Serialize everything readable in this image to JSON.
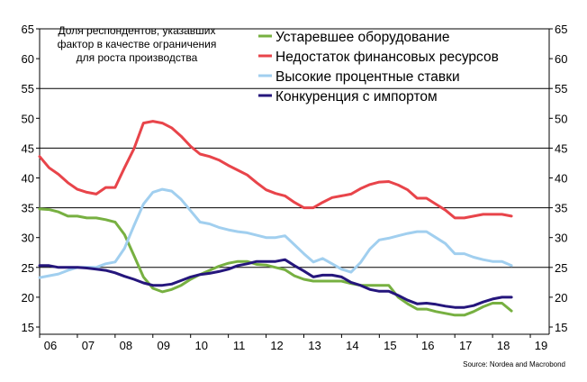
{
  "chart_data": {
    "type": "line",
    "annotation": [
      "Доля респондентов, указавших",
      "фактор в качестве ограничения",
      "для роста производства"
    ],
    "source": "Source: Nordea and Macrobond",
    "x_tick_labels": [
      "06",
      "07",
      "08",
      "09",
      "10",
      "11",
      "12",
      "13",
      "14",
      "15",
      "16",
      "17",
      "18",
      "19"
    ],
    "xlim": [
      2006,
      2019.5
    ],
    "ylim": [
      15,
      65
    ],
    "yticks": [
      15,
      20,
      25,
      30,
      35,
      40,
      45,
      50,
      55,
      60,
      65
    ],
    "grid": "horizontal lines at 25, 35, 45, 55, 65",
    "legend_position": "top-center",
    "series": [
      {
        "name": "Устаревшее оборудование",
        "color": "#77b041",
        "points": [
          [
            2006.0,
            34.8
          ],
          [
            2006.25,
            34.7
          ],
          [
            2006.5,
            34.3
          ],
          [
            2006.75,
            33.6
          ],
          [
            2007.0,
            33.6
          ],
          [
            2007.25,
            33.3
          ],
          [
            2007.5,
            33.3
          ],
          [
            2007.75,
            33.0
          ],
          [
            2008.0,
            32.6
          ],
          [
            2008.25,
            30.5
          ],
          [
            2008.5,
            27.0
          ],
          [
            2008.75,
            23.4
          ],
          [
            2009.0,
            21.5
          ],
          [
            2009.25,
            20.9
          ],
          [
            2009.5,
            21.3
          ],
          [
            2009.75,
            22.0
          ],
          [
            2010.0,
            23.0
          ],
          [
            2010.25,
            23.8
          ],
          [
            2010.5,
            24.5
          ],
          [
            2010.75,
            25.2
          ],
          [
            2011.0,
            25.7
          ],
          [
            2011.25,
            26.0
          ],
          [
            2011.5,
            26.0
          ],
          [
            2011.75,
            25.5
          ],
          [
            2012.0,
            25.4
          ],
          [
            2012.25,
            25.0
          ],
          [
            2012.5,
            24.6
          ],
          [
            2012.75,
            23.6
          ],
          [
            2013.0,
            23.0
          ],
          [
            2013.25,
            22.7
          ],
          [
            2013.5,
            22.7
          ],
          [
            2013.75,
            22.7
          ],
          [
            2014.0,
            22.7
          ],
          [
            2014.25,
            22.3
          ],
          [
            2014.5,
            22.0
          ],
          [
            2014.75,
            22.0
          ],
          [
            2015.0,
            22.0
          ],
          [
            2015.25,
            22.0
          ],
          [
            2015.5,
            20.0
          ],
          [
            2015.75,
            18.9
          ],
          [
            2016.0,
            18.0
          ],
          [
            2016.25,
            18.0
          ],
          [
            2016.5,
            17.6
          ],
          [
            2016.75,
            17.3
          ],
          [
            2017.0,
            17.0
          ],
          [
            2017.25,
            17.0
          ],
          [
            2017.5,
            17.6
          ],
          [
            2017.75,
            18.4
          ],
          [
            2018.0,
            19.0
          ],
          [
            2018.25,
            19.0
          ],
          [
            2018.5,
            17.7
          ]
        ]
      },
      {
        "name": "Недостаток финансовых ресурсов",
        "color": "#e8444a",
        "points": [
          [
            2006.0,
            43.6
          ],
          [
            2006.25,
            41.7
          ],
          [
            2006.5,
            40.6
          ],
          [
            2006.75,
            39.2
          ],
          [
            2007.0,
            38.1
          ],
          [
            2007.25,
            37.6
          ],
          [
            2007.5,
            37.3
          ],
          [
            2007.75,
            38.4
          ],
          [
            2008.0,
            38.4
          ],
          [
            2008.25,
            41.7
          ],
          [
            2008.5,
            44.9
          ],
          [
            2008.75,
            49.2
          ],
          [
            2009.0,
            49.5
          ],
          [
            2009.25,
            49.2
          ],
          [
            2009.5,
            48.4
          ],
          [
            2009.75,
            47.0
          ],
          [
            2010.0,
            45.3
          ],
          [
            2010.25,
            44.0
          ],
          [
            2010.5,
            43.6
          ],
          [
            2010.75,
            43.0
          ],
          [
            2011.0,
            42.1
          ],
          [
            2011.25,
            41.3
          ],
          [
            2011.5,
            40.5
          ],
          [
            2011.75,
            39.2
          ],
          [
            2012.0,
            38.0
          ],
          [
            2012.25,
            37.4
          ],
          [
            2012.5,
            37.0
          ],
          [
            2012.75,
            35.9
          ],
          [
            2013.0,
            35.0
          ],
          [
            2013.25,
            35.0
          ],
          [
            2013.5,
            35.9
          ],
          [
            2013.75,
            36.7
          ],
          [
            2014.0,
            37.0
          ],
          [
            2014.25,
            37.3
          ],
          [
            2014.5,
            38.2
          ],
          [
            2014.75,
            38.9
          ],
          [
            2015.0,
            39.3
          ],
          [
            2015.25,
            39.4
          ],
          [
            2015.5,
            38.8
          ],
          [
            2015.75,
            38.0
          ],
          [
            2016.0,
            36.6
          ],
          [
            2016.25,
            36.6
          ],
          [
            2016.5,
            35.6
          ],
          [
            2016.75,
            34.6
          ],
          [
            2017.0,
            33.3
          ],
          [
            2017.25,
            33.3
          ],
          [
            2017.5,
            33.6
          ],
          [
            2017.75,
            33.9
          ],
          [
            2018.0,
            33.9
          ],
          [
            2018.25,
            33.9
          ],
          [
            2018.5,
            33.6
          ]
        ]
      },
      {
        "name": "Высокие процентные ставки",
        "color": "#a1cfef",
        "points": [
          [
            2006.0,
            23.3
          ],
          [
            2006.25,
            23.6
          ],
          [
            2006.5,
            23.9
          ],
          [
            2006.75,
            24.5
          ],
          [
            2007.0,
            25.0
          ],
          [
            2007.25,
            25.0
          ],
          [
            2007.5,
            25.0
          ],
          [
            2007.75,
            25.6
          ],
          [
            2008.0,
            25.9
          ],
          [
            2008.25,
            28.2
          ],
          [
            2008.5,
            32.0
          ],
          [
            2008.75,
            35.6
          ],
          [
            2009.0,
            37.6
          ],
          [
            2009.25,
            38.1
          ],
          [
            2009.5,
            37.8
          ],
          [
            2009.75,
            36.4
          ],
          [
            2010.0,
            34.5
          ],
          [
            2010.25,
            32.6
          ],
          [
            2010.5,
            32.3
          ],
          [
            2010.75,
            31.7
          ],
          [
            2011.0,
            31.3
          ],
          [
            2011.25,
            31.0
          ],
          [
            2011.5,
            30.8
          ],
          [
            2011.75,
            30.4
          ],
          [
            2012.0,
            30.0
          ],
          [
            2012.25,
            30.0
          ],
          [
            2012.5,
            30.3
          ],
          [
            2012.75,
            28.8
          ],
          [
            2013.0,
            27.3
          ],
          [
            2013.25,
            25.9
          ],
          [
            2013.5,
            26.5
          ],
          [
            2013.75,
            25.6
          ],
          [
            2014.0,
            24.7
          ],
          [
            2014.25,
            24.2
          ],
          [
            2014.5,
            25.8
          ],
          [
            2014.75,
            28.1
          ],
          [
            2015.0,
            29.6
          ],
          [
            2015.25,
            29.9
          ],
          [
            2015.5,
            30.3
          ],
          [
            2015.75,
            30.7
          ],
          [
            2016.0,
            31.0
          ],
          [
            2016.25,
            31.0
          ],
          [
            2016.5,
            30.0
          ],
          [
            2016.75,
            29.0
          ],
          [
            2017.0,
            27.3
          ],
          [
            2017.25,
            27.3
          ],
          [
            2017.5,
            26.7
          ],
          [
            2017.75,
            26.3
          ],
          [
            2018.0,
            26.0
          ],
          [
            2018.25,
            26.0
          ],
          [
            2018.5,
            25.3
          ]
        ]
      },
      {
        "name": "Конкуренция с импортом",
        "color": "#25167c",
        "points": [
          [
            2006.0,
            25.3
          ],
          [
            2006.25,
            25.3
          ],
          [
            2006.5,
            25.0
          ],
          [
            2006.75,
            25.0
          ],
          [
            2007.0,
            25.0
          ],
          [
            2007.25,
            24.9
          ],
          [
            2007.5,
            24.7
          ],
          [
            2007.75,
            24.5
          ],
          [
            2008.0,
            24.1
          ],
          [
            2008.25,
            23.5
          ],
          [
            2008.5,
            23.0
          ],
          [
            2008.75,
            22.4
          ],
          [
            2009.0,
            22.0
          ],
          [
            2009.25,
            22.0
          ],
          [
            2009.5,
            22.2
          ],
          [
            2009.75,
            22.8
          ],
          [
            2010.0,
            23.4
          ],
          [
            2010.25,
            23.8
          ],
          [
            2010.5,
            24.0
          ],
          [
            2010.75,
            24.3
          ],
          [
            2011.0,
            24.7
          ],
          [
            2011.25,
            25.3
          ],
          [
            2011.5,
            25.6
          ],
          [
            2011.75,
            26.0
          ],
          [
            2012.0,
            26.0
          ],
          [
            2012.25,
            26.0
          ],
          [
            2012.5,
            26.3
          ],
          [
            2012.75,
            25.3
          ],
          [
            2013.0,
            24.4
          ],
          [
            2013.25,
            23.4
          ],
          [
            2013.5,
            23.7
          ],
          [
            2013.75,
            23.7
          ],
          [
            2014.0,
            23.4
          ],
          [
            2014.25,
            22.5
          ],
          [
            2014.5,
            22.0
          ],
          [
            2014.75,
            21.3
          ],
          [
            2015.0,
            21.0
          ],
          [
            2015.25,
            21.0
          ],
          [
            2015.5,
            20.3
          ],
          [
            2015.75,
            19.5
          ],
          [
            2016.0,
            18.9
          ],
          [
            2016.25,
            19.0
          ],
          [
            2016.5,
            18.8
          ],
          [
            2016.75,
            18.5
          ],
          [
            2017.0,
            18.3
          ],
          [
            2017.25,
            18.3
          ],
          [
            2017.5,
            18.6
          ],
          [
            2017.75,
            19.2
          ],
          [
            2018.0,
            19.7
          ],
          [
            2018.25,
            20.0
          ],
          [
            2018.5,
            20.0
          ]
        ]
      }
    ]
  }
}
